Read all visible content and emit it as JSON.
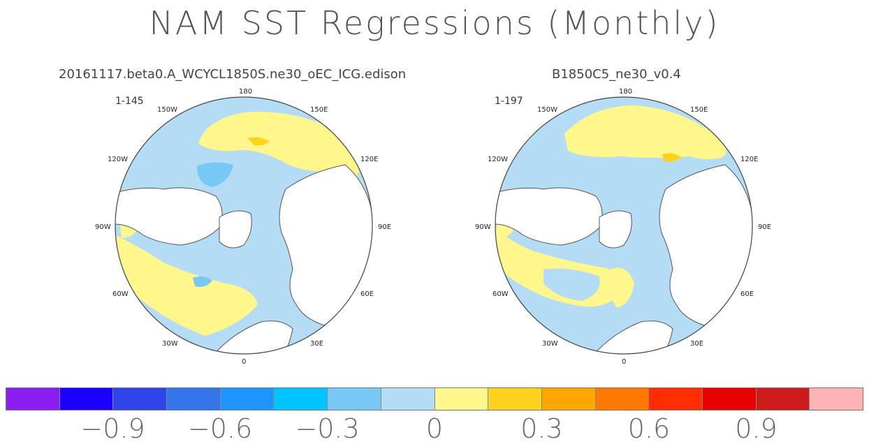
{
  "title": "NAM SST Regressions (Monthly)",
  "panels": [
    {
      "title": "20161117.beta0.A_WCYCL1850S.ne30_oEC_ICG.edison",
      "years": "1-145"
    },
    {
      "title": "B1850C5_ne30_v0.4",
      "years": "1-197"
    }
  ],
  "lon_labels": [
    "180",
    "150W",
    "150E",
    "120W",
    "120E",
    "90W",
    "90E",
    "60W",
    "60E",
    "30W",
    "30E",
    "0"
  ],
  "colorbar": {
    "colors": [
      "#8a1df0",
      "#1c00ff",
      "#2f45e8",
      "#3374e8",
      "#1e96ff",
      "#00c3ff",
      "#78c8f5",
      "#b4dcf5",
      "#fff68c",
      "#ffd21e",
      "#ffa600",
      "#ff7800",
      "#ff2d00",
      "#e60000",
      "#cd1b1b",
      "#ffb4b4"
    ],
    "tick_labels": [
      "−0.9",
      "−0.6",
      "−0.3",
      "0",
      "0.3",
      "0.6",
      "0.9"
    ]
  },
  "chart_data": {
    "type": "heatmap",
    "title": "NAM SST Regressions (Monthly)",
    "projection": "north polar stereographic",
    "field": "SST regression on NAM index",
    "colorbar_levels": [
      -1.05,
      -0.9,
      -0.75,
      -0.6,
      -0.45,
      -0.3,
      -0.15,
      0,
      0.15,
      0.3,
      0.45,
      0.6,
      0.75,
      0.9,
      1.05
    ],
    "colorbar_ticks": [
      -0.9,
      -0.6,
      -0.3,
      0,
      0.3,
      0.6,
      0.9
    ],
    "panels": [
      "20161117.beta0.A_WCYCL1850S.ne30_oEC_ICG.edison",
      "B1850C5_ne30_v0.4"
    ]
  }
}
